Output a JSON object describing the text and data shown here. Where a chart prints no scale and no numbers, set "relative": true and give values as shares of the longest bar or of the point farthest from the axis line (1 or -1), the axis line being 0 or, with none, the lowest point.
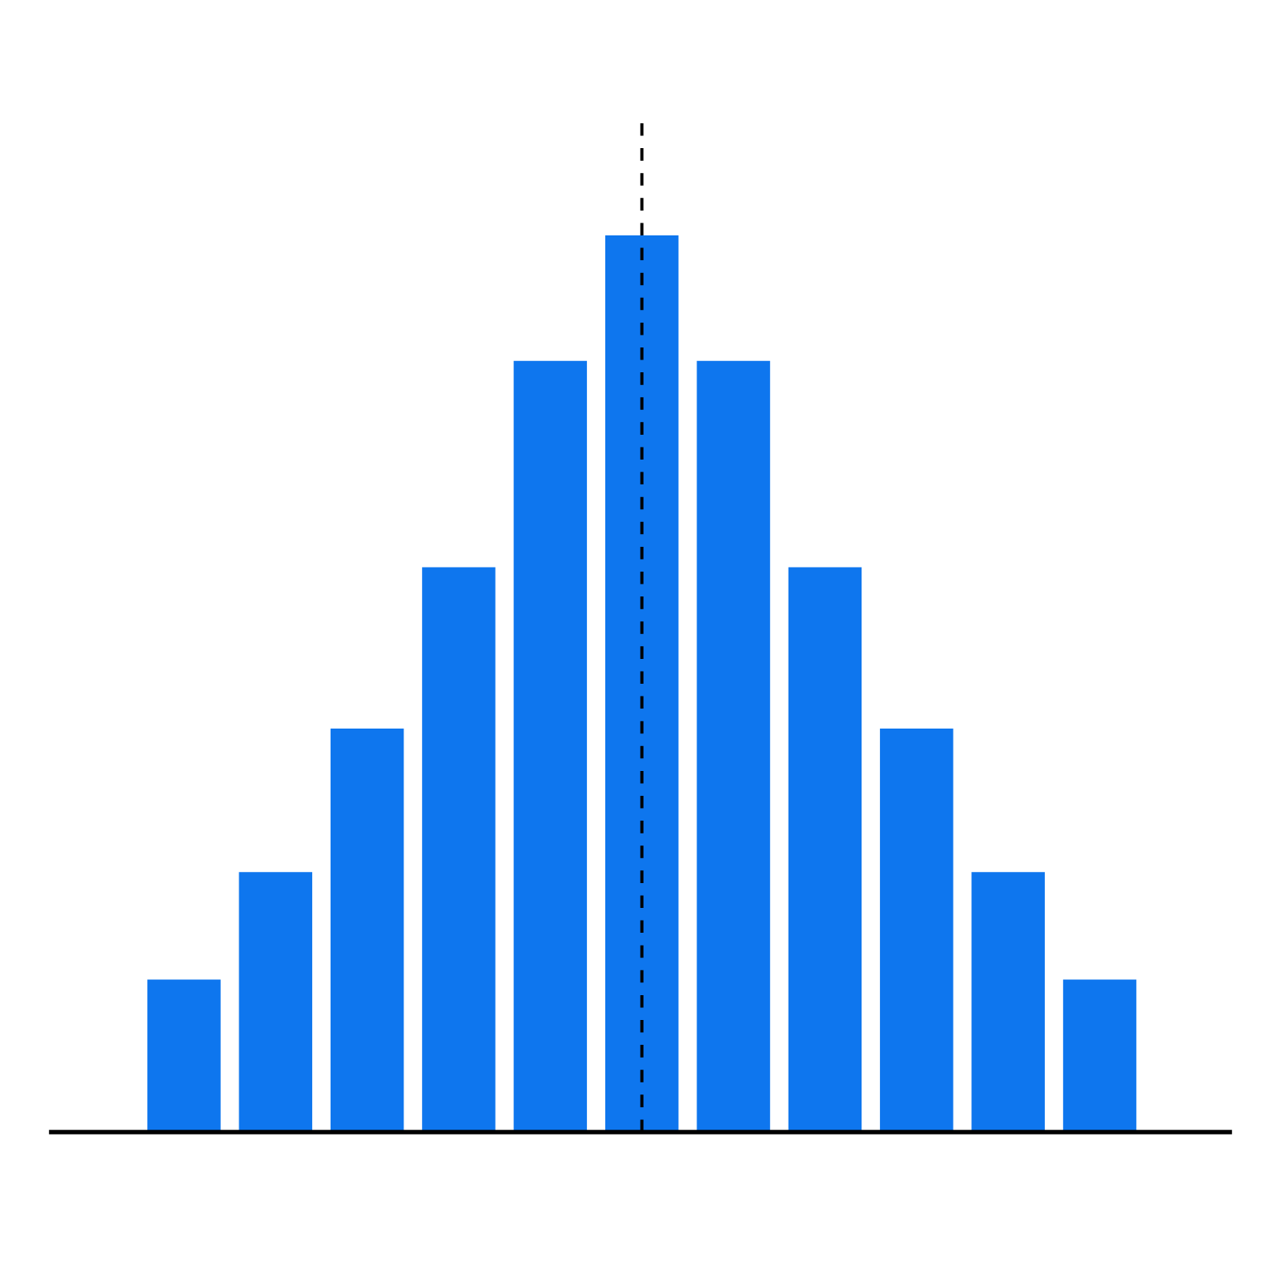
{
  "chart_data": {
    "type": "bar",
    "relative": true,
    "categories": [
      null,
      null,
      null,
      null,
      null,
      null,
      null,
      null,
      null,
      null,
      null
    ],
    "values": [
      0.17,
      0.29,
      0.45,
      0.63,
      0.86,
      1,
      0.86,
      0.63,
      0.45,
      0.29,
      0.17
    ],
    "color": "#0e76ee"
  }
}
